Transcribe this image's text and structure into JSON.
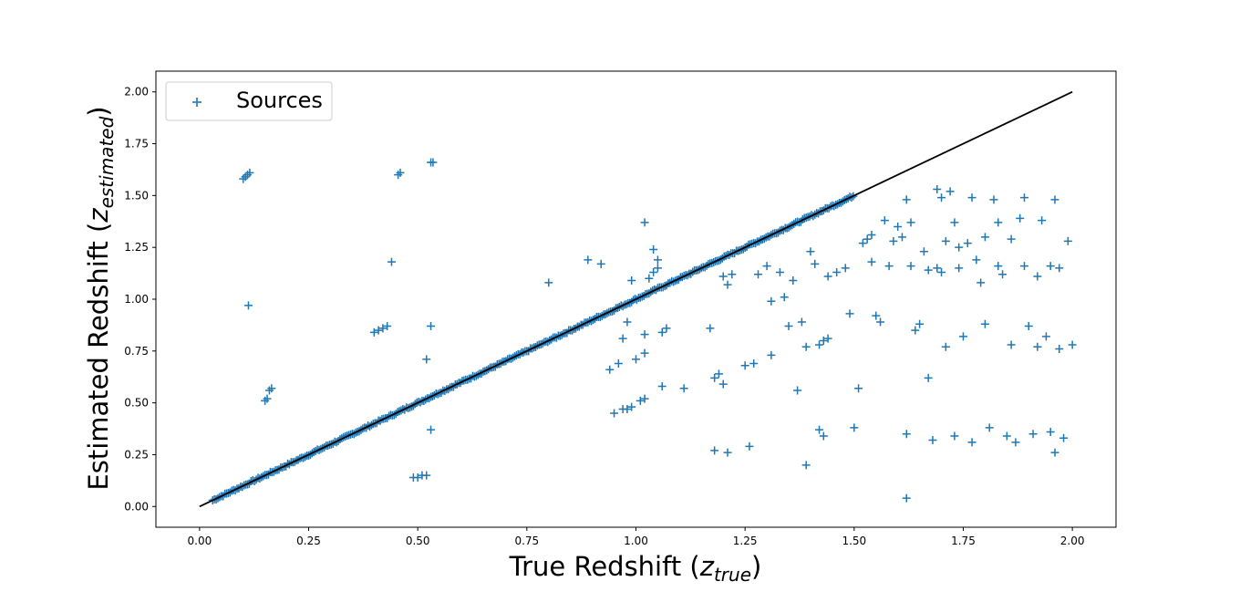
{
  "chart_data": {
    "type": "scatter",
    "title": "",
    "xlabel": {
      "prefix": "True Redshift (",
      "var": "z",
      "sub": "true",
      "suffix": ")"
    },
    "ylabel": {
      "prefix": "Estimated Redshift (",
      "var": "z",
      "sub": "estimated",
      "suffix": ")"
    },
    "xlim": [
      -0.1,
      2.1
    ],
    "ylim": [
      -0.1,
      2.1
    ],
    "xticks": [
      {
        "value": 0.0,
        "label": "0.00"
      },
      {
        "value": 0.25,
        "label": "0.25"
      },
      {
        "value": 0.5,
        "label": "0.50"
      },
      {
        "value": 0.75,
        "label": "0.75"
      },
      {
        "value": 1.0,
        "label": "1.00"
      },
      {
        "value": 1.25,
        "label": "1.25"
      },
      {
        "value": 1.5,
        "label": "1.50"
      },
      {
        "value": 1.75,
        "label": "1.75"
      },
      {
        "value": 2.0,
        "label": "2.00"
      }
    ],
    "yticks": [
      {
        "value": 0.0,
        "label": "0.00"
      },
      {
        "value": 0.25,
        "label": "0.25"
      },
      {
        "value": 0.5,
        "label": "0.50"
      },
      {
        "value": 0.75,
        "label": "0.75"
      },
      {
        "value": 1.0,
        "label": "1.00"
      },
      {
        "value": 1.25,
        "label": "1.25"
      },
      {
        "value": 1.5,
        "label": "1.50"
      },
      {
        "value": 1.75,
        "label": "1.75"
      },
      {
        "value": 2.0,
        "label": "2.00"
      }
    ],
    "grid": false,
    "legend": {
      "placement": "top-left",
      "entries": [
        {
          "label": "Sources",
          "marker": "+",
          "color": "#1f77b4"
        }
      ]
    },
    "reference_line": {
      "x": [
        0,
        2
      ],
      "y": [
        0,
        2
      ],
      "color": "#000000"
    },
    "series": [
      {
        "name": "Sources",
        "marker": "+",
        "color": "#1f77b4",
        "diagonal_range": [
          0.03,
          1.5
        ],
        "points": [
          [
            0.1,
            1.58
          ],
          [
            0.105,
            1.59
          ],
          [
            0.11,
            1.6
          ],
          [
            0.115,
            1.61
          ],
          [
            0.112,
            0.97
          ],
          [
            0.15,
            0.51
          ],
          [
            0.155,
            0.52
          ],
          [
            0.16,
            0.56
          ],
          [
            0.165,
            0.57
          ],
          [
            0.4,
            0.84
          ],
          [
            0.41,
            0.85
          ],
          [
            0.42,
            0.86
          ],
          [
            0.43,
            0.87
          ],
          [
            0.44,
            1.18
          ],
          [
            0.455,
            1.6
          ],
          [
            0.46,
            1.61
          ],
          [
            0.53,
            1.66
          ],
          [
            0.535,
            1.66
          ],
          [
            0.52,
            0.71
          ],
          [
            0.53,
            0.87
          ],
          [
            0.53,
            0.37
          ],
          [
            0.49,
            0.14
          ],
          [
            0.5,
            0.14
          ],
          [
            0.51,
            0.15
          ],
          [
            0.52,
            0.15
          ],
          [
            0.8,
            1.08
          ],
          [
            0.89,
            1.19
          ],
          [
            0.92,
            1.17
          ],
          [
            0.94,
            0.66
          ],
          [
            0.95,
            0.45
          ],
          [
            0.96,
            0.69
          ],
          [
            0.97,
            0.47
          ],
          [
            0.98,
            0.47
          ],
          [
            0.99,
            0.48
          ],
          [
            0.97,
            0.81
          ],
          [
            0.98,
            0.89
          ],
          [
            0.99,
            1.09
          ],
          [
            1.0,
            0.71
          ],
          [
            1.01,
            0.51
          ],
          [
            1.02,
            0.52
          ],
          [
            1.02,
            0.74
          ],
          [
            1.02,
            0.83
          ],
          [
            1.03,
            1.1
          ],
          [
            1.04,
            1.13
          ],
          [
            1.05,
            1.15
          ],
          [
            1.05,
            1.19
          ],
          [
            1.02,
            1.37
          ],
          [
            1.04,
            1.24
          ],
          [
            1.06,
            0.84
          ],
          [
            1.07,
            0.86
          ],
          [
            1.06,
            0.58
          ],
          [
            1.11,
            0.57
          ],
          [
            1.17,
            0.86
          ],
          [
            1.18,
            0.62
          ],
          [
            1.19,
            0.64
          ],
          [
            1.2,
            0.59
          ],
          [
            1.2,
            1.11
          ],
          [
            1.21,
            1.07
          ],
          [
            1.22,
            1.12
          ],
          [
            1.18,
            0.27
          ],
          [
            1.21,
            0.26
          ],
          [
            1.26,
            0.29
          ],
          [
            1.25,
            0.68
          ],
          [
            1.27,
            0.69
          ],
          [
            1.28,
            1.12
          ],
          [
            1.3,
            1.16
          ],
          [
            1.31,
            0.99
          ],
          [
            1.31,
            0.73
          ],
          [
            1.33,
            1.13
          ],
          [
            1.34,
            1.01
          ],
          [
            1.35,
            0.87
          ],
          [
            1.36,
            1.09
          ],
          [
            1.37,
            0.56
          ],
          [
            1.38,
            0.89
          ],
          [
            1.39,
            0.77
          ],
          [
            1.39,
            0.2
          ],
          [
            1.4,
            1.23
          ],
          [
            1.41,
            1.17
          ],
          [
            1.42,
            0.78
          ],
          [
            1.43,
            0.8
          ],
          [
            1.44,
            0.81
          ],
          [
            1.42,
            0.37
          ],
          [
            1.43,
            0.34
          ],
          [
            1.44,
            1.11
          ],
          [
            1.46,
            1.13
          ],
          [
            1.48,
            1.15
          ],
          [
            1.49,
            0.93
          ],
          [
            1.5,
            0.38
          ],
          [
            1.51,
            0.57
          ],
          [
            1.52,
            1.27
          ],
          [
            1.53,
            1.29
          ],
          [
            1.54,
            1.31
          ],
          [
            1.54,
            1.18
          ],
          [
            1.55,
            0.92
          ],
          [
            1.56,
            0.89
          ],
          [
            1.57,
            1.38
          ],
          [
            1.58,
            1.16
          ],
          [
            1.59,
            1.28
          ],
          [
            1.6,
            1.35
          ],
          [
            1.61,
            1.3
          ],
          [
            1.62,
            1.48
          ],
          [
            1.62,
            0.35
          ],
          [
            1.62,
            0.04
          ],
          [
            1.63,
            1.37
          ],
          [
            1.63,
            1.16
          ],
          [
            1.64,
            0.85
          ],
          [
            1.65,
            0.88
          ],
          [
            1.66,
            1.23
          ],
          [
            1.67,
            1.14
          ],
          [
            1.67,
            0.62
          ],
          [
            1.68,
            0.32
          ],
          [
            1.69,
            1.53
          ],
          [
            1.7,
            1.49
          ],
          [
            1.7,
            1.13
          ],
          [
            1.71,
            0.77
          ],
          [
            1.72,
            1.52
          ],
          [
            1.73,
            1.37
          ],
          [
            1.73,
            0.34
          ],
          [
            1.74,
            1.15
          ],
          [
            1.75,
            0.82
          ],
          [
            1.76,
            1.27
          ],
          [
            1.77,
            0.31
          ],
          [
            1.78,
            1.19
          ],
          [
            1.79,
            1.08
          ],
          [
            1.8,
            0.88
          ],
          [
            1.81,
            0.38
          ],
          [
            1.82,
            1.48
          ],
          [
            1.83,
            1.16
          ],
          [
            1.84,
            1.12
          ],
          [
            1.85,
            0.34
          ],
          [
            1.86,
            0.78
          ],
          [
            1.87,
            0.31
          ],
          [
            1.88,
            1.39
          ],
          [
            1.89,
            1.16
          ],
          [
            1.9,
            0.87
          ],
          [
            1.91,
            0.35
          ],
          [
            1.92,
            0.77
          ],
          [
            1.93,
            1.38
          ],
          [
            1.94,
            0.82
          ],
          [
            1.95,
            0.36
          ],
          [
            1.96,
            1.48
          ],
          [
            1.96,
            0.26
          ],
          [
            1.97,
            1.15
          ],
          [
            1.98,
            0.33
          ],
          [
            1.99,
            1.28
          ],
          [
            2.0,
            0.78
          ],
          [
            1.97,
            0.76
          ],
          [
            1.69,
            1.15
          ],
          [
            1.71,
            1.28
          ],
          [
            1.74,
            1.25
          ],
          [
            1.77,
            1.49
          ],
          [
            1.8,
            1.3
          ],
          [
            1.83,
            1.37
          ],
          [
            1.86,
            1.29
          ],
          [
            1.89,
            1.49
          ],
          [
            1.92,
            1.11
          ],
          [
            1.95,
            1.16
          ]
        ]
      }
    ]
  }
}
